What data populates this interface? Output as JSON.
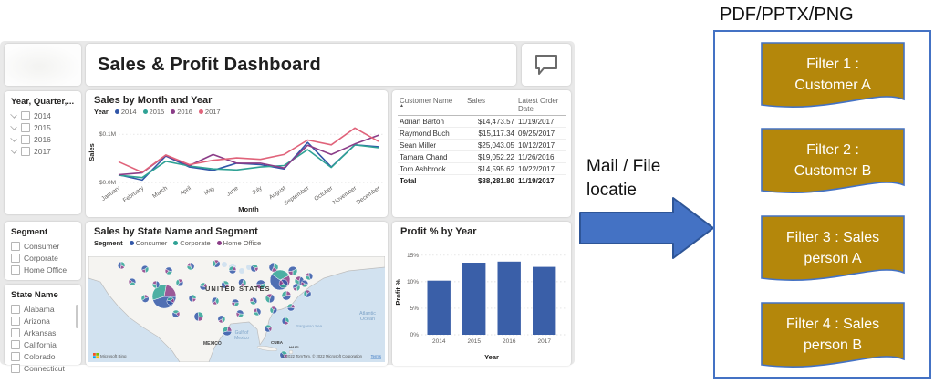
{
  "dashboard": {
    "title": "Sales & Profit Dashboard",
    "slicers": {
      "year": {
        "title": "Year, Quarter,...",
        "items": [
          "2014",
          "2015",
          "2016",
          "2017"
        ]
      },
      "segment": {
        "title": "Segment",
        "items": [
          "Consumer",
          "Corporate",
          "Home Office"
        ]
      },
      "state": {
        "title": "State Name",
        "items": [
          "Alabama",
          "Arizona",
          "Arkansas",
          "California",
          "Colorado",
          "Connecticut"
        ]
      }
    },
    "table": {
      "columns": [
        "Customer Name",
        "Sales",
        "Latest Order Date"
      ],
      "rows": [
        [
          "Adrian Barton",
          "$14,473.57",
          "11/19/2017"
        ],
        [
          "Raymond Buch",
          "$15,117.34",
          "09/25/2017"
        ],
        [
          "Sean Miller",
          "$25,043.05",
          "10/12/2017"
        ],
        [
          "Tamara Chand",
          "$19,052.22",
          "11/26/2016"
        ],
        [
          "Tom Ashbrook",
          "$14,595.62",
          "10/22/2017"
        ]
      ],
      "total": [
        "Total",
        "$88,281.80",
        "11/19/2017"
      ]
    },
    "map": {
      "labels": {
        "united_states": "UNITED STATES",
        "mexico": "MEXICO",
        "cuba": "CUBA",
        "haiti": "HAITI",
        "gulf1": "Gulf of",
        "gulf2": "Mexico",
        "atlantic1": "Atlantic",
        "atlantic2": "Ocean",
        "sargasso": "Sargasso Sea"
      },
      "bing_label": "Microsoft Bing",
      "attribution": "© 2022 TomTom, © 2022 Microsoft Corporation",
      "terms": "Terms"
    }
  },
  "chart_data": [
    {
      "id": "sales_by_month",
      "type": "line",
      "title": "Sales by Month and Year",
      "legend_title": "Year",
      "legend_position": "top",
      "x": [
        "January",
        "February",
        "March",
        "April",
        "May",
        "June",
        "July",
        "August",
        "September",
        "October",
        "November",
        "December"
      ],
      "series": [
        {
          "name": "2014",
          "color": "#3257A8",
          "values": [
            0.016,
            0.005,
            0.055,
            0.032,
            0.025,
            0.04,
            0.037,
            0.028,
            0.083,
            0.032,
            0.078,
            0.074
          ]
        },
        {
          "name": "2015",
          "color": "#2FA295",
          "values": [
            0.015,
            0.01,
            0.044,
            0.034,
            0.028,
            0.026,
            0.032,
            0.035,
            0.068,
            0.031,
            0.078,
            0.072
          ]
        },
        {
          "name": "2016",
          "color": "#8B3D88",
          "values": [
            0.016,
            0.02,
            0.056,
            0.035,
            0.058,
            0.04,
            0.04,
            0.03,
            0.077,
            0.058,
            0.08,
            0.098
          ]
        },
        {
          "name": "2017",
          "color": "#E0637A",
          "values": [
            0.043,
            0.021,
            0.057,
            0.037,
            0.046,
            0.051,
            0.048,
            0.058,
            0.088,
            0.078,
            0.113,
            0.085
          ]
        }
      ],
      "xlabel": "Month",
      "ylabel": "Sales",
      "ylim": [
        0,
        0.125
      ],
      "yticks": [
        {
          "v": 0,
          "label": "$0.0M"
        },
        {
          "v": 0.1,
          "label": "$0.1M"
        }
      ],
      "grid": "dotted"
    },
    {
      "id": "profit_by_year",
      "type": "bar",
      "title": "Profit % by Year",
      "categories": [
        "2014",
        "2015",
        "2016",
        "2017"
      ],
      "values": [
        10.2,
        13.6,
        13.8,
        12.8
      ],
      "bar_color": "#3A5FA8",
      "xlabel": "Year",
      "ylabel": "Profit %",
      "ylim": [
        0,
        16
      ],
      "yticks": [
        {
          "v": 0,
          "label": "0%"
        },
        {
          "v": 5,
          "label": "5%"
        },
        {
          "v": 10,
          "label": "10%"
        },
        {
          "v": 15,
          "label": "15%"
        }
      ],
      "grid": "dotted"
    },
    {
      "id": "sales_map",
      "type": "scatter",
      "title": "Sales by State Name and Segment",
      "legend_title": "Segment",
      "legend": [
        {
          "name": "Consumer",
          "color": "#3257A8"
        },
        {
          "name": "Corporate",
          "color": "#2FA295"
        },
        {
          "name": "Home Office",
          "color": "#8B3D88"
        }
      ],
      "pie_fractions": [
        0.45,
        0.33,
        0.22
      ],
      "bubbles": [
        [
          83,
          44,
          13
        ],
        [
          210,
          26,
          11
        ],
        [
          36,
          10,
          4
        ],
        [
          62,
          14,
          4
        ],
        [
          88,
          16,
          4
        ],
        [
          112,
          11,
          4
        ],
        [
          140,
          8,
          4
        ],
        [
          158,
          15,
          4
        ],
        [
          182,
          13,
          4
        ],
        [
          203,
          12,
          5
        ],
        [
          224,
          16,
          5
        ],
        [
          48,
          28,
          4
        ],
        [
          74,
          31,
          4
        ],
        [
          100,
          29,
          4
        ],
        [
          126,
          33,
          4
        ],
        [
          150,
          31,
          4
        ],
        [
          169,
          29,
          4
        ],
        [
          189,
          31,
          5
        ],
        [
          214,
          30,
          5
        ],
        [
          231,
          27,
          5
        ],
        [
          62,
          46,
          4
        ],
        [
          90,
          49,
          4
        ],
        [
          114,
          46,
          4
        ],
        [
          139,
          49,
          4
        ],
        [
          161,
          51,
          4
        ],
        [
          181,
          49,
          4
        ],
        [
          199,
          46,
          5
        ],
        [
          217,
          43,
          5
        ],
        [
          96,
          63,
          4
        ],
        [
          121,
          66,
          5
        ],
        [
          146,
          69,
          4
        ],
        [
          166,
          63,
          4
        ],
        [
          185,
          61,
          4
        ],
        [
          203,
          59,
          4
        ],
        [
          152,
          82,
          5
        ],
        [
          197,
          79,
          4
        ],
        [
          216,
          71,
          4
        ],
        [
          228,
          34,
          4
        ],
        [
          237,
          30,
          4
        ],
        [
          242,
          22,
          4
        ],
        [
          240,
          41,
          4
        ],
        [
          222,
          56,
          4
        ],
        [
          214,
          108,
          4
        ]
      ]
    }
  ],
  "flow": {
    "label": "Mail / File locatie"
  },
  "export": {
    "title": "PDF/PPTX/PNG",
    "shape_fill": "#B4870B",
    "shape_border": "#4472C4",
    "filters": [
      {
        "label": "Filter 1 : Customer A",
        "lines": [
          "Filter 1 :",
          "Customer A"
        ]
      },
      {
        "label": "Filter 2 : Customer B",
        "lines": [
          "Filter 2 :",
          "Customer B"
        ]
      },
      {
        "label": "Filter 3 : Sales person A",
        "lines": [
          "Filter 3 : Sales",
          "person A"
        ]
      },
      {
        "label": "Filter 4 : Sales person B",
        "lines": [
          "Filter 4 : Sales",
          "person B"
        ]
      }
    ]
  }
}
